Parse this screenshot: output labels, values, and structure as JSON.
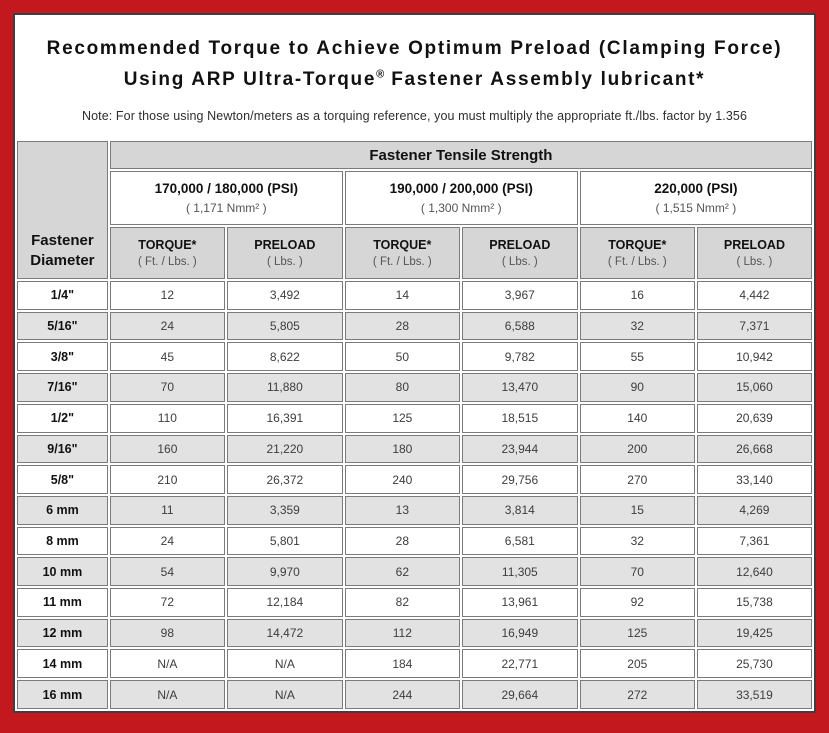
{
  "colors": {
    "border_red": "#c2181e",
    "frame_line": "#3f3f3f",
    "header_gray": "#d6d6d6",
    "row_alt_gray": "#e2e2e2",
    "cell_border": "#7b7b7b"
  },
  "title": {
    "line1": "Recommended Torque to Achieve Optimum Preload (Clamping Force)",
    "line2_pre": "Using ARP Ultra-Torque",
    "line2_sup": "®",
    "line2_post": " Fastener Assembly lubricant*"
  },
  "note": "Note: For those using Newton/meters as a torquing reference, you must multiply the appropriate ft./lbs. factor by 1.356",
  "chart_data": {
    "type": "table",
    "header": "Fastener Tensile Strength",
    "row_header": "Fastener Diameter",
    "column_groups": [
      {
        "psi": "170,000 / 180,000 (PSI)",
        "nmm2": "( 1,171 Nmm² )"
      },
      {
        "psi": "190,000 / 200,000 (PSI)",
        "nmm2": "( 1,300 Nmm² )"
      },
      {
        "psi": "220,000 (PSI)",
        "nmm2": "( 1,515 Nmm² )"
      }
    ],
    "subcolumns": {
      "torque_label": "TORQUE*",
      "torque_unit": "( Ft. / Lbs. )",
      "preload_label": "PRELOAD",
      "preload_unit": "( Lbs. )"
    },
    "rows": [
      {
        "diameter": "1/4\"",
        "values": [
          "12",
          "3,492",
          "14",
          "3,967",
          "16",
          "4,442"
        ]
      },
      {
        "diameter": "5/16\"",
        "values": [
          "24",
          "5,805",
          "28",
          "6,588",
          "32",
          "7,371"
        ]
      },
      {
        "diameter": "3/8\"",
        "values": [
          "45",
          "8,622",
          "50",
          "9,782",
          "55",
          "10,942"
        ]
      },
      {
        "diameter": "7/16\"",
        "values": [
          "70",
          "11,880",
          "80",
          "13,470",
          "90",
          "15,060"
        ]
      },
      {
        "diameter": "1/2\"",
        "values": [
          "110",
          "16,391",
          "125",
          "18,515",
          "140",
          "20,639"
        ]
      },
      {
        "diameter": "9/16\"",
        "values": [
          "160",
          "21,220",
          "180",
          "23,944",
          "200",
          "26,668"
        ]
      },
      {
        "diameter": "5/8\"",
        "values": [
          "210",
          "26,372",
          "240",
          "29,756",
          "270",
          "33,140"
        ]
      },
      {
        "diameter": "6 mm",
        "values": [
          "11",
          "3,359",
          "13",
          "3,814",
          "15",
          "4,269"
        ]
      },
      {
        "diameter": "8 mm",
        "values": [
          "24",
          "5,801",
          "28",
          "6,581",
          "32",
          "7,361"
        ]
      },
      {
        "diameter": "10 mm",
        "values": [
          "54",
          "9,970",
          "62",
          "11,305",
          "70",
          "12,640"
        ]
      },
      {
        "diameter": "11 mm",
        "values": [
          "72",
          "12,184",
          "82",
          "13,961",
          "92",
          "15,738"
        ]
      },
      {
        "diameter": "12 mm",
        "values": [
          "98",
          "14,472",
          "112",
          "16,949",
          "125",
          "19,425"
        ]
      },
      {
        "diameter": "14 mm",
        "values": [
          "N/A",
          "N/A",
          "184",
          "22,771",
          "205",
          "25,730"
        ]
      },
      {
        "diameter": "16 mm",
        "values": [
          "N/A",
          "N/A",
          "244",
          "29,664",
          "272",
          "33,519"
        ]
      }
    ]
  }
}
